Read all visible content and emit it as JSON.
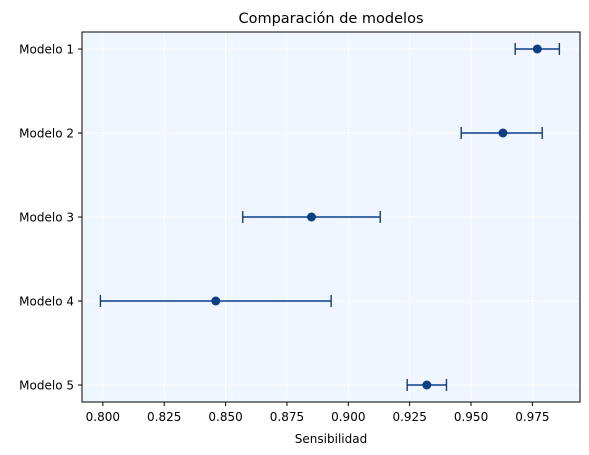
{
  "chart_data": {
    "type": "errorbar",
    "title": "Comparación de modelos",
    "xlabel": "Sensibilidad",
    "ylabel": "",
    "xlim": [
      0.7915,
      0.9944
    ],
    "xticks": [
      "0.800",
      "0.825",
      "0.850",
      "0.875",
      "0.900",
      "0.925",
      "0.950",
      "0.975"
    ],
    "grid": true,
    "orientation": "horizontal",
    "categories": [
      "Modelo 1",
      "Modelo 2",
      "Modelo 3",
      "Modelo 4",
      "Modelo 5"
    ],
    "series": [
      {
        "values": [
          0.977,
          0.963,
          0.885,
          0.846,
          0.932
        ],
        "ci_low": [
          0.968,
          0.946,
          0.857,
          0.799,
          0.924
        ],
        "ci_high": [
          0.986,
          0.979,
          0.913,
          0.893,
          0.94
        ]
      }
    ],
    "colors": {
      "marker": "#0d3f87",
      "background": "#f0f6ff",
      "grid": "#ffffff"
    }
  }
}
